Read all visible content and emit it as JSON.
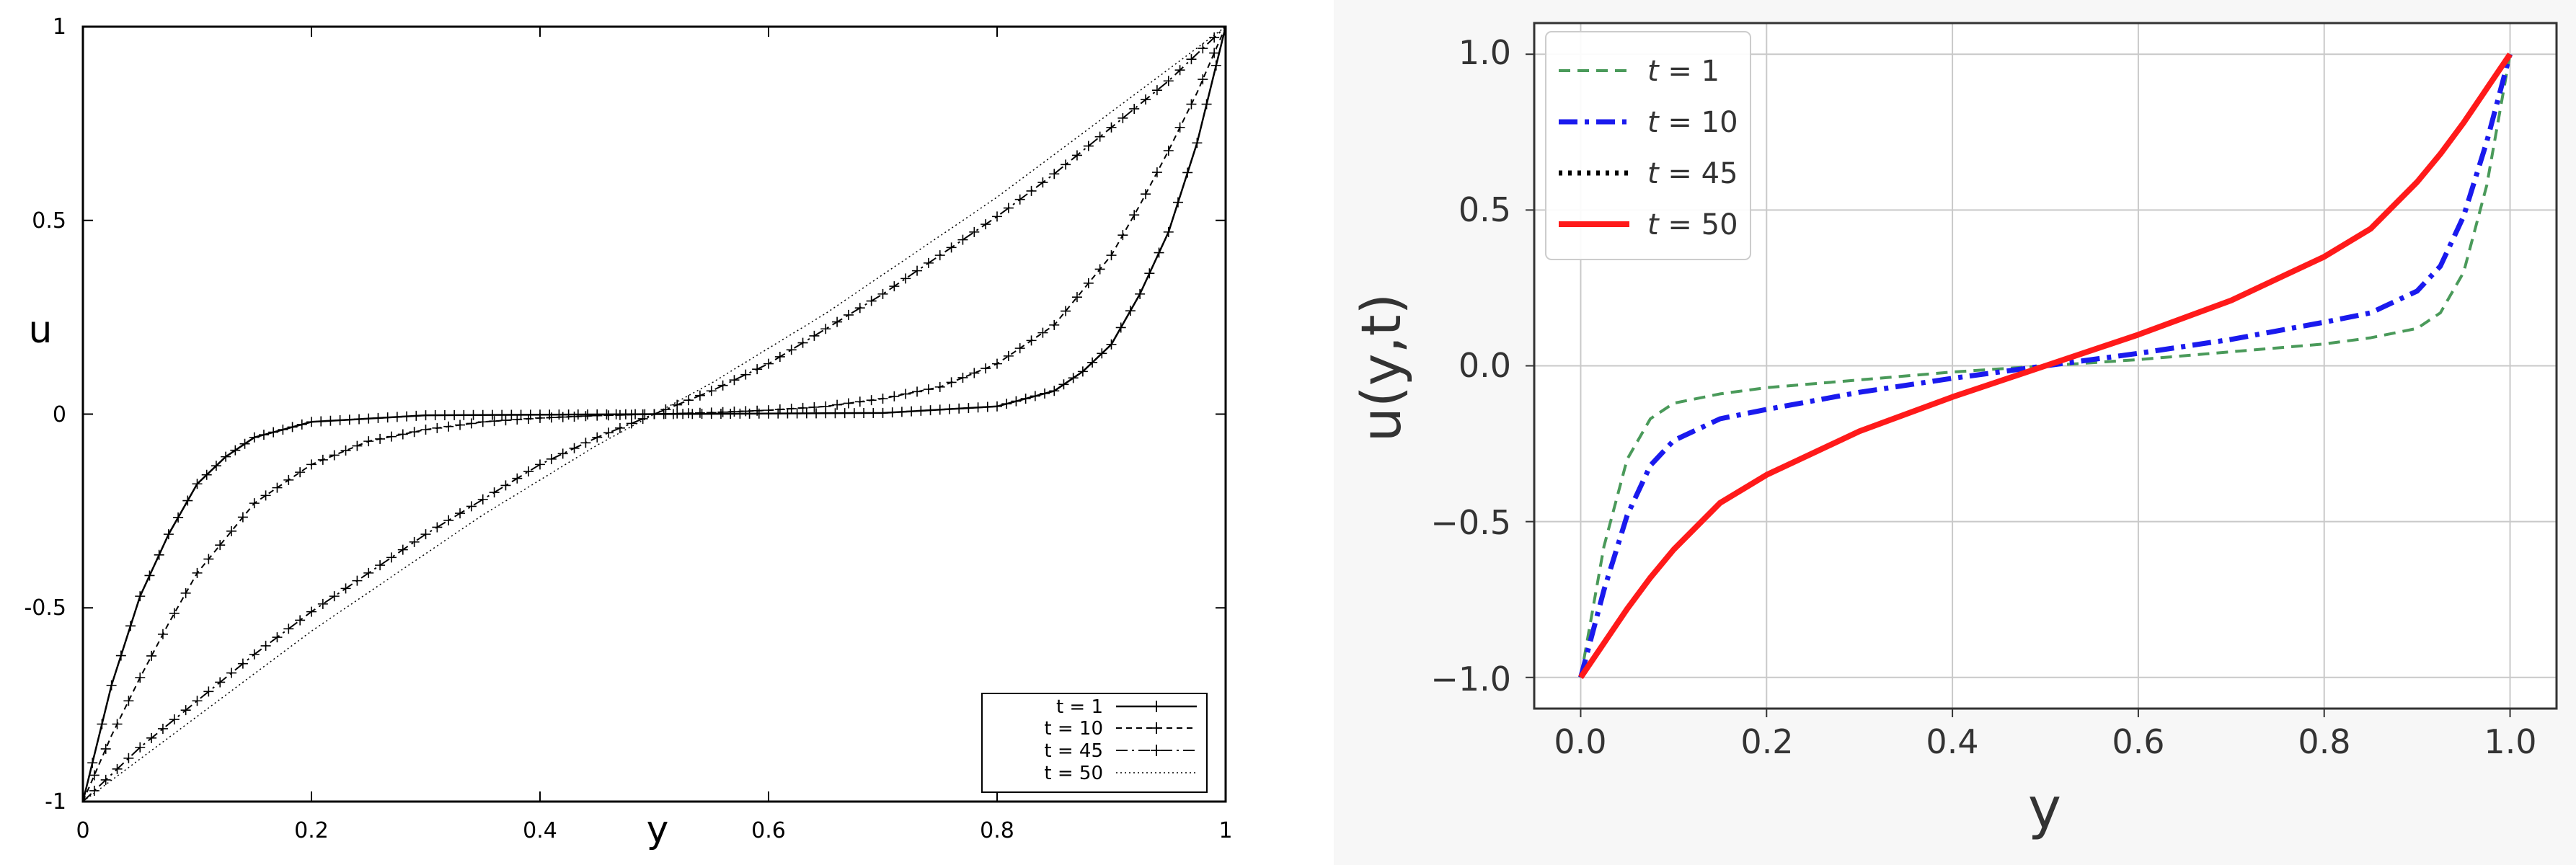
{
  "chart_data": [
    {
      "type": "line",
      "xlabel": "y",
      "ylabel": "u",
      "xlim": [
        0,
        1
      ],
      "ylim": [
        -1,
        1
      ],
      "xticks": [
        "0",
        "0.2",
        "0.4",
        "0.6",
        "0.8",
        "1"
      ],
      "yticks": [
        "-1",
        "-0.5",
        "0",
        "0.5",
        "1"
      ],
      "legend_position": "bottom-right",
      "series": [
        {
          "name": "t = 1",
          "style": "solid-plus",
          "x": [
            0,
            0.025,
            0.05,
            0.075,
            0.1,
            0.125,
            0.15,
            0.2,
            0.3,
            0.5,
            0.7,
            0.8,
            0.85,
            0.875,
            0.9,
            0.925,
            0.95,
            0.975,
            1.0
          ],
          "y": [
            -1,
            -0.7,
            -0.47,
            -0.31,
            -0.18,
            -0.11,
            -0.06,
            -0.02,
            -0.003,
            0,
            0.003,
            0.02,
            0.06,
            0.11,
            0.18,
            0.31,
            0.47,
            0.7,
            1
          ]
        },
        {
          "name": "t = 10",
          "style": "dashed-plus",
          "x": [
            0,
            0.025,
            0.05,
            0.075,
            0.1,
            0.15,
            0.2,
            0.25,
            0.3,
            0.35,
            0.4,
            0.45,
            0.5,
            0.55,
            0.6,
            0.65,
            0.7,
            0.75,
            0.8,
            0.85,
            0.9,
            0.925,
            0.95,
            0.975,
            1.0
          ],
          "y": [
            -1,
            -0.83,
            -0.68,
            -0.54,
            -0.41,
            -0.23,
            -0.13,
            -0.07,
            -0.04,
            -0.02,
            -0.01,
            -0.004,
            0,
            0.004,
            0.01,
            0.02,
            0.04,
            0.07,
            0.13,
            0.23,
            0.41,
            0.54,
            0.68,
            0.83,
            1
          ]
        },
        {
          "name": "t = 45",
          "style": "dashdot-plus",
          "x": [
            0,
            0.05,
            0.1,
            0.15,
            0.2,
            0.25,
            0.3,
            0.35,
            0.4,
            0.45,
            0.5,
            0.55,
            0.6,
            0.65,
            0.7,
            0.75,
            0.8,
            0.85,
            0.9,
            0.95,
            1.0
          ],
          "y": [
            -1,
            -0.86,
            -0.74,
            -0.62,
            -0.51,
            -0.41,
            -0.31,
            -0.22,
            -0.13,
            -0.06,
            0,
            0.06,
            0.13,
            0.22,
            0.31,
            0.41,
            0.51,
            0.62,
            0.74,
            0.86,
            1
          ]
        },
        {
          "name": "t = 50",
          "style": "dotted",
          "x": [
            0,
            0.05,
            0.1,
            0.15,
            0.2,
            0.25,
            0.3,
            0.35,
            0.4,
            0.45,
            0.5,
            0.55,
            0.6,
            0.65,
            0.7,
            0.75,
            0.8,
            0.85,
            0.9,
            0.95,
            1.0
          ],
          "y": [
            -1,
            -0.89,
            -0.78,
            -0.67,
            -0.56,
            -0.46,
            -0.36,
            -0.26,
            -0.17,
            -0.08,
            0,
            0.08,
            0.17,
            0.26,
            0.36,
            0.46,
            0.56,
            0.67,
            0.78,
            0.89,
            1
          ]
        }
      ]
    },
    {
      "type": "line",
      "xlabel": "y",
      "ylabel": "u(y,t)",
      "xlim": [
        -0.05,
        1.05
      ],
      "ylim": [
        -1.1,
        1.1
      ],
      "grid": true,
      "xticks": [
        "0.0",
        "0.2",
        "0.4",
        "0.6",
        "0.8",
        "1.0"
      ],
      "yticks": [
        "−1.0",
        "−0.5",
        "0.0",
        "0.5",
        "1.0"
      ],
      "legend_position": "top-left",
      "series": [
        {
          "name": "t = 1",
          "t_symbol": "t",
          "t_value": "= 1",
          "style": "dashed",
          "color": "#4a9a5a",
          "x": [
            0,
            0.025,
            0.05,
            0.075,
            0.1,
            0.15,
            0.2,
            0.3,
            0.4,
            0.5,
            0.6,
            0.7,
            0.8,
            0.85,
            0.9,
            0.925,
            0.95,
            0.975,
            1.0
          ],
          "y": [
            -1,
            -0.58,
            -0.3,
            -0.17,
            -0.12,
            -0.09,
            -0.07,
            -0.045,
            -0.02,
            0,
            0.02,
            0.045,
            0.07,
            0.09,
            0.12,
            0.17,
            0.3,
            0.58,
            1
          ]
        },
        {
          "name": "t = 10",
          "t_symbol": "t",
          "t_value": "= 10",
          "style": "dashdot",
          "color": "#1a1aee",
          "x": [
            0,
            0.025,
            0.05,
            0.075,
            0.1,
            0.15,
            0.2,
            0.3,
            0.4,
            0.5,
            0.6,
            0.7,
            0.8,
            0.85,
            0.9,
            0.925,
            0.95,
            0.975,
            1.0
          ],
          "y": [
            -1,
            -0.72,
            -0.48,
            -0.32,
            -0.24,
            -0.17,
            -0.14,
            -0.085,
            -0.04,
            0,
            0.04,
            0.085,
            0.14,
            0.17,
            0.24,
            0.32,
            0.48,
            0.72,
            1
          ]
        },
        {
          "name": "t = 45",
          "t_symbol": "t",
          "t_value": "= 45",
          "style": "dotted",
          "color": "#000000",
          "x": [
            0,
            0.025,
            0.05,
            0.075,
            0.1,
            0.15,
            0.2,
            0.3,
            0.4,
            0.5,
            0.6,
            0.7,
            0.8,
            0.85,
            0.9,
            0.925,
            0.95,
            0.975,
            1.0
          ],
          "y": [
            -1,
            -0.89,
            -0.78,
            -0.68,
            -0.59,
            -0.44,
            -0.35,
            -0.21,
            -0.1,
            0,
            0.1,
            0.21,
            0.35,
            0.44,
            0.59,
            0.68,
            0.78,
            0.89,
            1
          ]
        },
        {
          "name": "t = 50",
          "t_symbol": "t",
          "t_value": "= 50",
          "style": "solid",
          "color": "#ff1a1a",
          "x": [
            0,
            0.025,
            0.05,
            0.075,
            0.1,
            0.15,
            0.2,
            0.3,
            0.4,
            0.5,
            0.6,
            0.7,
            0.8,
            0.85,
            0.9,
            0.925,
            0.95,
            0.975,
            1.0
          ],
          "y": [
            -1,
            -0.89,
            -0.78,
            -0.68,
            -0.59,
            -0.44,
            -0.35,
            -0.21,
            -0.1,
            0,
            0.1,
            0.21,
            0.35,
            0.44,
            0.59,
            0.68,
            0.78,
            0.89,
            1
          ]
        }
      ]
    }
  ]
}
